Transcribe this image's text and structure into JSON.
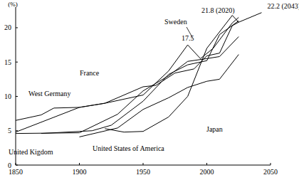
{
  "chart_data": {
    "type": "line",
    "y_label": "(%)",
    "xlim": [
      1850,
      2050
    ],
    "xticks": [
      1850,
      1900,
      1950,
      2000,
      2050
    ],
    "ylim": [
      0,
      23
    ],
    "yticks": [
      0,
      5,
      10,
      15,
      20
    ],
    "grid": false,
    "series": [
      {
        "name": "France",
        "color": "#000000",
        "x": [
          1850,
          1870,
          1880,
          1900,
          1920,
          1950,
          1960,
          1975,
          1990,
          2000,
          2010,
          2020,
          2025
        ],
        "values": [
          6.5,
          7.3,
          8.3,
          8.4,
          9.0,
          11.4,
          11.6,
          13.4,
          14.0,
          15.9,
          16.3,
          20.3,
          20.8
        ]
      },
      {
        "name": "Sweden",
        "color": "#000000",
        "x": [
          1850,
          1900,
          1920,
          1950,
          1970,
          1985,
          1995,
          2005,
          2020,
          2025
        ],
        "values": [
          4.8,
          8.4,
          9.0,
          10.2,
          13.7,
          17.5,
          15.5,
          17.0,
          20.7,
          21.5
        ]
      },
      {
        "name": "West Germany",
        "color": "#000000",
        "x": [
          1870,
          1910,
          1925,
          1950,
          1970,
          1985,
          2000,
          2010,
          2025
        ],
        "values": [
          4.6,
          5.0,
          5.8,
          9.3,
          13.2,
          14.6,
          15.2,
          19.0,
          21.0
        ]
      },
      {
        "name": "United Kigdom",
        "color": "#000000",
        "x": [
          1850,
          1900,
          1930,
          1950,
          1970,
          1985,
          2000,
          2010,
          2025
        ],
        "values": [
          4.6,
          4.7,
          7.4,
          10.8,
          13.0,
          15.1,
          15.5,
          15.8,
          18.7
        ]
      },
      {
        "name": "United States of America",
        "color": "#000000",
        "x": [
          1900,
          1930,
          1950,
          1970,
          1985,
          2000,
          2010,
          2025
        ],
        "values": [
          4.1,
          5.4,
          8.1,
          9.8,
          11.3,
          12.2,
          12.5,
          16.1
        ]
      },
      {
        "name": "Japan",
        "color": "#000000",
        "x": [
          1920,
          1935,
          1950,
          1970,
          1985,
          2000,
          2020,
          2025,
          2043
        ],
        "values": [
          5.3,
          4.8,
          4.9,
          7.0,
          10.0,
          17.0,
          21.8,
          20.8,
          22.2
        ]
      }
    ],
    "annotations": [
      {
        "text": "21.8 (2020)",
        "x": 2020,
        "y": 21.8
      },
      {
        "text": "22.2 (2043)",
        "x": 2043,
        "y": 22.2
      },
      {
        "text": "17.5",
        "x": 1985,
        "y": 17.5
      }
    ]
  }
}
